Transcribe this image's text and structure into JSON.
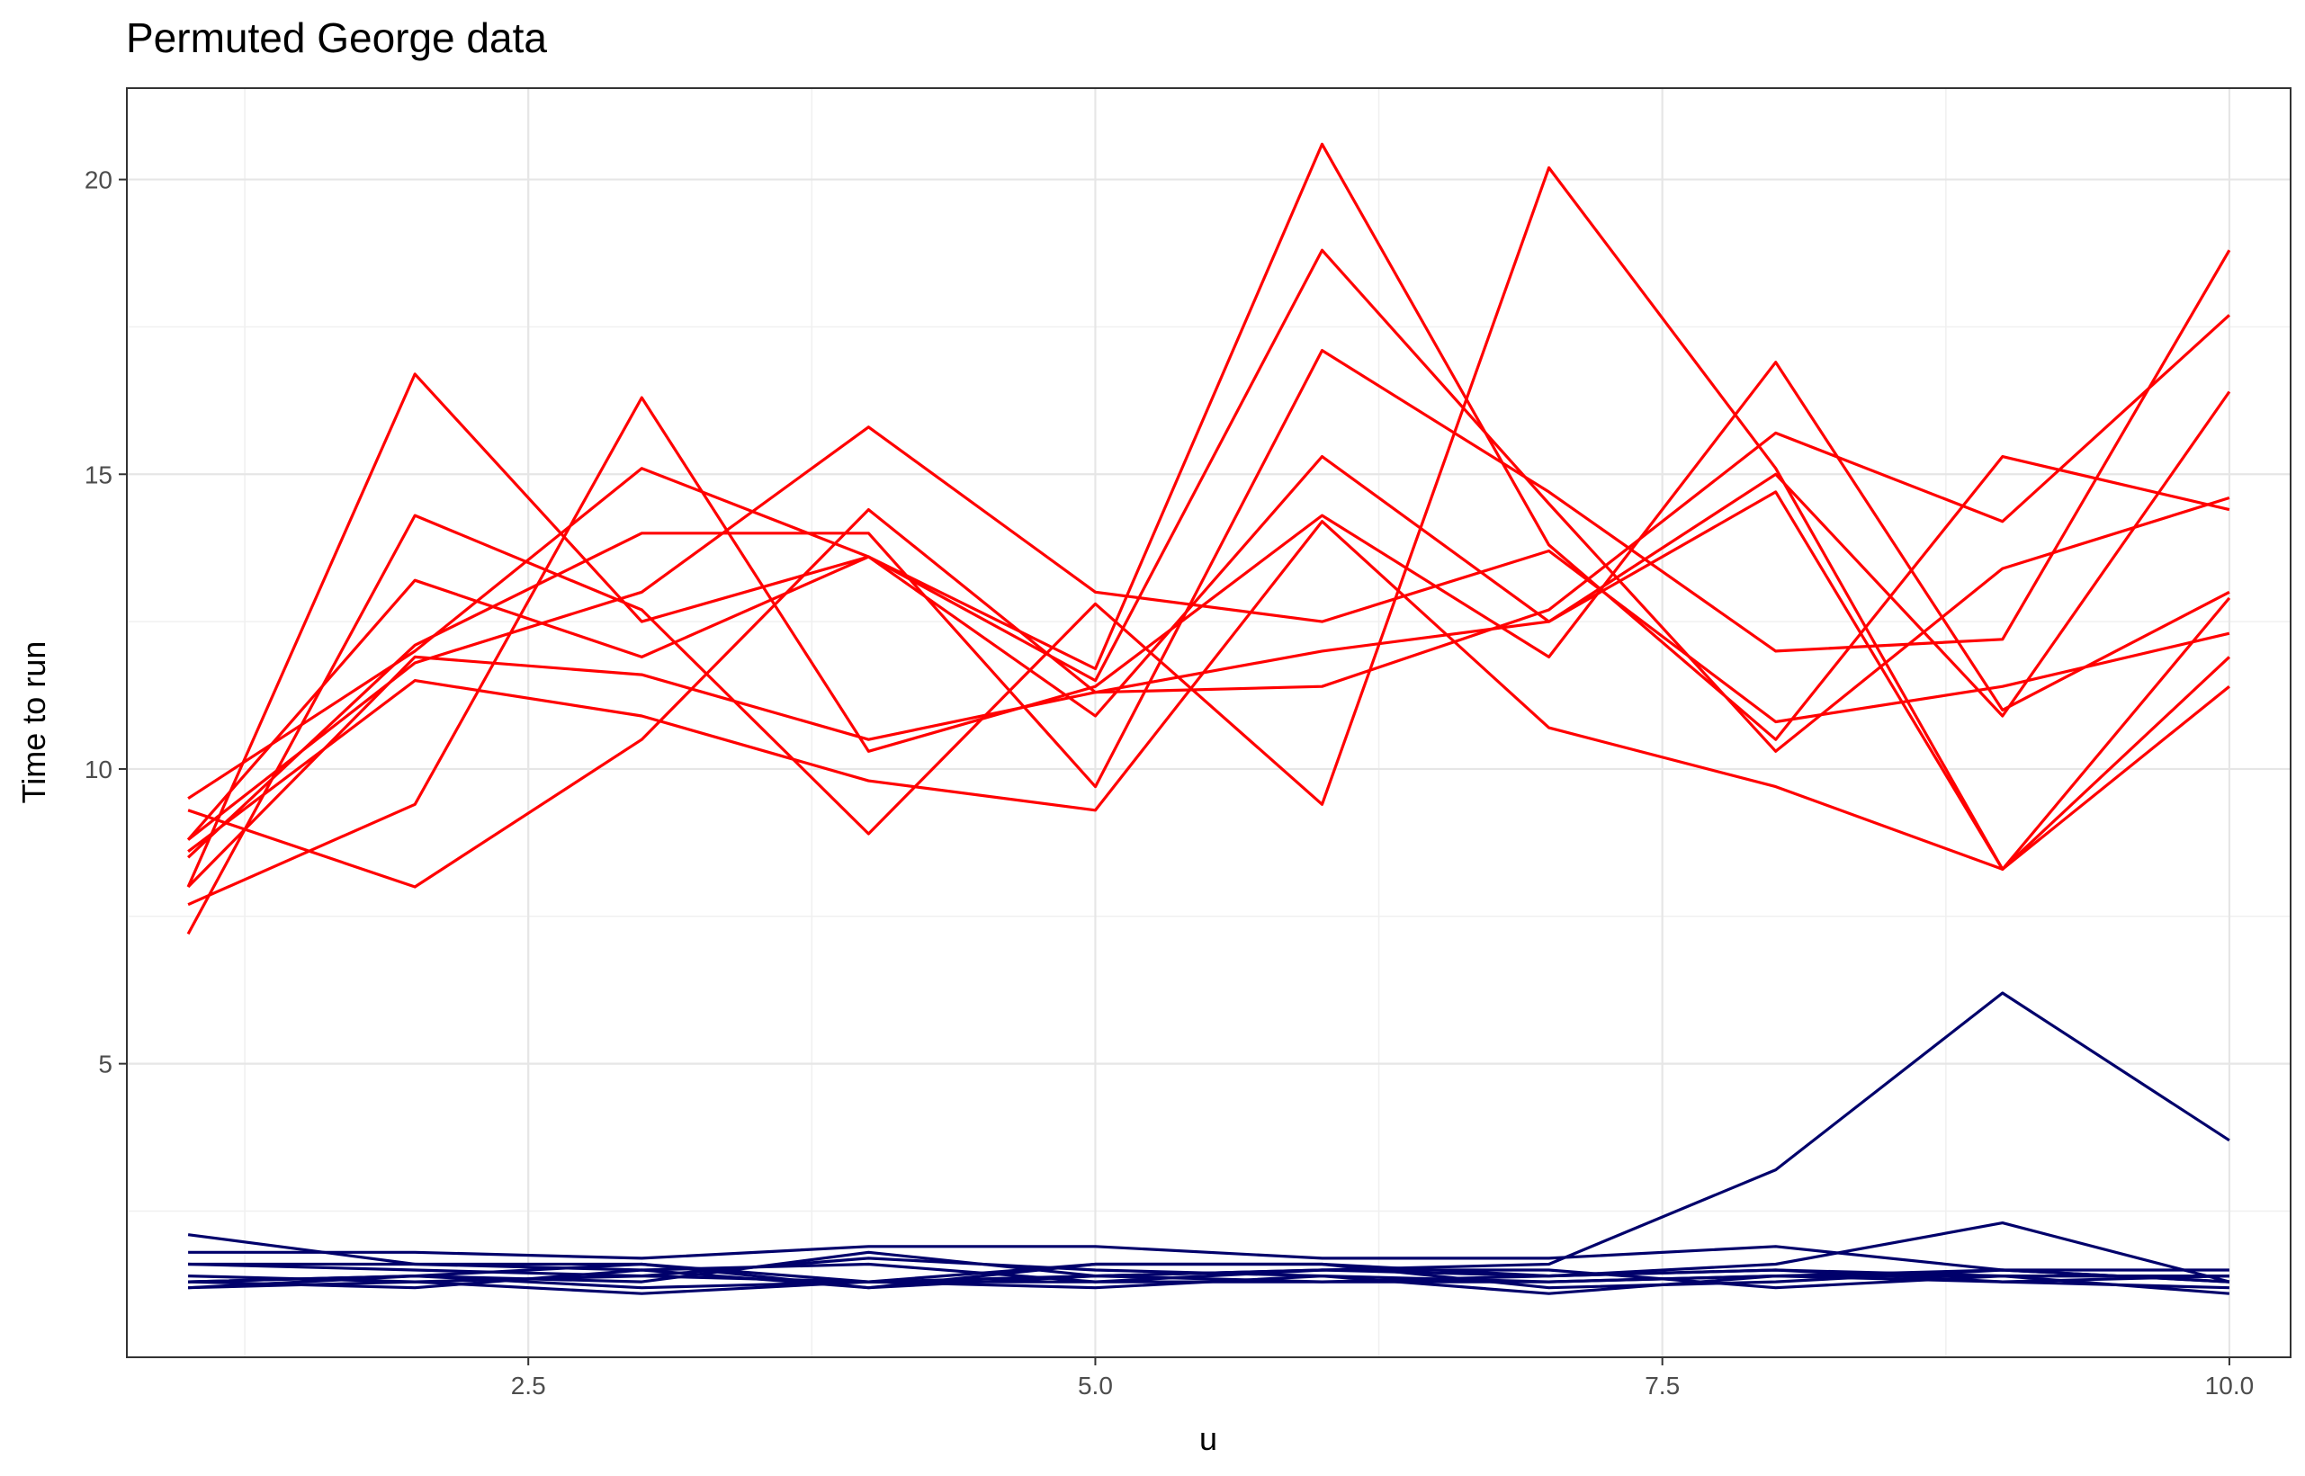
{
  "chart_data": {
    "type": "line",
    "title": "Permuted George data",
    "xlabel": "u",
    "ylabel": "Time to run",
    "xlim": [
      0.73,
      10.27
    ],
    "ylim": [
      0.02,
      21.55
    ],
    "grid": true,
    "x_ticks": [
      "2.5",
      "5.0",
      "7.5",
      "10.0"
    ],
    "y_ticks": [
      "5",
      "10",
      "15",
      "20"
    ],
    "x": [
      1,
      2,
      3,
      4,
      5,
      6,
      7,
      8,
      9,
      10
    ],
    "colors": {
      "group_a": "#ff0000",
      "group_b": "#00006b"
    },
    "series": [
      {
        "group": "a",
        "values": [
          8.0,
          16.7,
          12.5,
          13.6,
          11.5,
          18.8,
          14.5,
          10.3,
          13.4,
          14.6
        ]
      },
      {
        "group": "a",
        "values": [
          7.2,
          14.3,
          12.7,
          8.9,
          12.8,
          9.4,
          20.2,
          15.1,
          8.3,
          11.4
        ]
      },
      {
        "group": "a",
        "values": [
          8.8,
          13.2,
          11.9,
          13.6,
          11.7,
          20.6,
          13.8,
          10.5,
          15.3,
          14.4
        ]
      },
      {
        "group": "a",
        "values": [
          9.5,
          12.0,
          15.1,
          13.6,
          10.9,
          15.3,
          12.5,
          14.7,
          8.3,
          12.9
        ]
      },
      {
        "group": "a",
        "values": [
          8.0,
          11.9,
          11.6,
          10.5,
          11.3,
          11.4,
          12.7,
          15.7,
          14.2,
          17.7
        ]
      },
      {
        "group": "a",
        "values": [
          7.7,
          9.4,
          16.3,
          10.3,
          11.4,
          14.3,
          11.9,
          16.9,
          11.0,
          13.0
        ]
      },
      {
        "group": "a",
        "values": [
          8.5,
          12.1,
          14.0,
          14.0,
          9.7,
          17.1,
          14.7,
          12.0,
          12.2,
          18.8
        ]
      },
      {
        "group": "a",
        "values": [
          8.6,
          11.5,
          10.9,
          9.8,
          9.3,
          14.2,
          10.7,
          9.7,
          8.3,
          11.9
        ]
      },
      {
        "group": "a",
        "values": [
          9.3,
          8.0,
          10.5,
          14.4,
          11.3,
          12.0,
          12.5,
          15.0,
          10.9,
          16.4
        ]
      },
      {
        "group": "a",
        "values": [
          8.8,
          11.8,
          13.0,
          15.8,
          13.0,
          12.5,
          13.7,
          10.8,
          11.4,
          12.3
        ]
      },
      {
        "group": "b",
        "values": [
          1.6,
          1.5,
          1.4,
          1.3,
          1.4,
          1.5,
          1.6,
          3.2,
          6.2,
          3.7
        ]
      },
      {
        "group": "b",
        "values": [
          2.1,
          1.6,
          1.6,
          1.2,
          1.6,
          1.6,
          1.4,
          1.6,
          2.3,
          1.3
        ]
      },
      {
        "group": "b",
        "values": [
          1.8,
          1.8,
          1.7,
          1.9,
          1.9,
          1.7,
          1.7,
          1.9,
          1.5,
          1.5
        ]
      },
      {
        "group": "b",
        "values": [
          1.4,
          1.3,
          1.4,
          1.7,
          1.5,
          1.4,
          1.3,
          1.4,
          1.4,
          1.4
        ]
      },
      {
        "group": "b",
        "values": [
          1.3,
          1.4,
          1.6,
          1.3,
          1.3,
          1.5,
          1.4,
          1.5,
          1.4,
          1.4
        ]
      },
      {
        "group": "b",
        "values": [
          1.2,
          1.3,
          1.1,
          1.3,
          1.2,
          1.4,
          1.1,
          1.4,
          1.3,
          1.2
        ]
      },
      {
        "group": "b",
        "values": [
          1.3,
          1.2,
          1.5,
          1.2,
          1.4,
          1.5,
          1.5,
          1.2,
          1.4,
          1.1
        ]
      },
      {
        "group": "b",
        "values": [
          1.3,
          1.4,
          1.2,
          1.3,
          1.6,
          1.6,
          1.2,
          1.3,
          1.5,
          1.3
        ]
      },
      {
        "group": "b",
        "values": [
          1.6,
          1.6,
          1.5,
          1.6,
          1.3,
          1.3,
          1.4,
          1.5,
          1.3,
          1.4
        ]
      },
      {
        "group": "b",
        "values": [
          1.2,
          1.4,
          1.3,
          1.8,
          1.4,
          1.3,
          1.3,
          1.4,
          1.5,
          1.3
        ]
      }
    ]
  }
}
